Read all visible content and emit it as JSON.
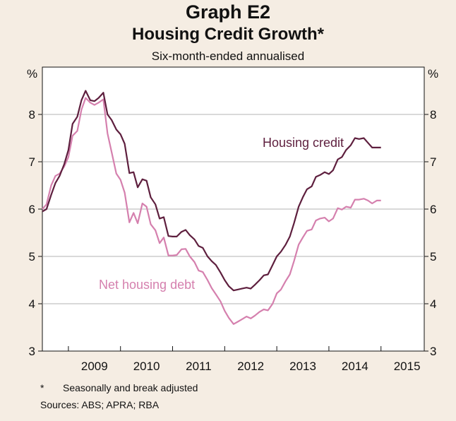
{
  "chart_data": {
    "type": "line",
    "title": "Graph E2",
    "subtitle": "Housing Credit Growth*",
    "caption": "Six-month-ended annualised",
    "ylabel_left": "%",
    "ylabel_right": "%",
    "ylim": [
      3,
      9
    ],
    "yticks": [
      3,
      4,
      5,
      6,
      7,
      8
    ],
    "xlim": [
      2008.5,
      2015.83
    ],
    "xtick_labels": [
      "2009",
      "2010",
      "2011",
      "2012",
      "2013",
      "2014",
      "2015"
    ],
    "grid": true,
    "series": [
      {
        "name": "Housing credit",
        "color": "#5e1f3e",
        "x": [
          2008.5,
          2008.58,
          2008.67,
          2008.75,
          2008.83,
          2008.92,
          2009.0,
          2009.08,
          2009.17,
          2009.25,
          2009.33,
          2009.42,
          2009.5,
          2009.58,
          2009.67,
          2009.75,
          2009.83,
          2009.92,
          2010.0,
          2010.08,
          2010.17,
          2010.25,
          2010.33,
          2010.42,
          2010.5,
          2010.58,
          2010.67,
          2010.75,
          2010.83,
          2010.92,
          2011.0,
          2011.08,
          2011.17,
          2011.25,
          2011.33,
          2011.42,
          2011.5,
          2011.58,
          2011.67,
          2011.75,
          2011.83,
          2011.92,
          2012.0,
          2012.08,
          2012.17,
          2012.25,
          2012.33,
          2012.42,
          2012.5,
          2012.58,
          2012.67,
          2012.75,
          2012.83,
          2012.92,
          2013.0,
          2013.08,
          2013.17,
          2013.25,
          2013.33,
          2013.42,
          2013.5,
          2013.58,
          2013.67,
          2013.75,
          2013.83,
          2013.92,
          2014.0,
          2014.08,
          2014.17,
          2014.25,
          2014.33,
          2014.42,
          2014.5,
          2014.58,
          2014.67,
          2014.75,
          2014.83,
          2014.92,
          2015.0
        ],
        "values": [
          5.95,
          6.0,
          6.3,
          6.55,
          6.7,
          6.95,
          7.25,
          7.8,
          7.95,
          8.3,
          8.5,
          8.3,
          8.28,
          8.35,
          8.46,
          8.0,
          7.88,
          7.68,
          7.58,
          7.38,
          6.76,
          6.78,
          6.46,
          6.63,
          6.6,
          6.25,
          6.1,
          5.8,
          5.83,
          5.43,
          5.42,
          5.42,
          5.52,
          5.56,
          5.45,
          5.36,
          5.22,
          5.18,
          5.0,
          4.9,
          4.82,
          4.66,
          4.5,
          4.37,
          4.28,
          4.3,
          4.32,
          4.34,
          4.32,
          4.4,
          4.5,
          4.6,
          4.62,
          4.82,
          5.0,
          5.1,
          5.25,
          5.42,
          5.7,
          6.05,
          6.25,
          6.42,
          6.48,
          6.68,
          6.72,
          6.78,
          6.74,
          6.82,
          7.05,
          7.1,
          7.25,
          7.35,
          7.5,
          7.48,
          7.5,
          7.4,
          7.3,
          7.3,
          7.3
        ]
      },
      {
        "name": "Net housing debt",
        "color": "#d580ae",
        "x": [
          2008.5,
          2008.58,
          2008.67,
          2008.75,
          2008.83,
          2008.92,
          2009.0,
          2009.08,
          2009.17,
          2009.25,
          2009.33,
          2009.42,
          2009.5,
          2009.58,
          2009.67,
          2009.75,
          2009.83,
          2009.92,
          2010.0,
          2010.08,
          2010.17,
          2010.25,
          2010.33,
          2010.42,
          2010.5,
          2010.58,
          2010.67,
          2010.75,
          2010.83,
          2010.92,
          2011.0,
          2011.08,
          2011.17,
          2011.25,
          2011.33,
          2011.42,
          2011.5,
          2011.58,
          2011.67,
          2011.75,
          2011.83,
          2011.92,
          2012.0,
          2012.08,
          2012.17,
          2012.25,
          2012.33,
          2012.42,
          2012.5,
          2012.58,
          2012.67,
          2012.75,
          2012.83,
          2012.92,
          2013.0,
          2013.08,
          2013.17,
          2013.25,
          2013.33,
          2013.42,
          2013.5,
          2013.58,
          2013.67,
          2013.75,
          2013.83,
          2013.92,
          2014.0,
          2014.08,
          2014.17,
          2014.25,
          2014.33,
          2014.42,
          2014.5,
          2014.58,
          2014.67,
          2014.75,
          2014.83,
          2014.92,
          2015.0
        ],
        "values": [
          6.0,
          6.1,
          6.5,
          6.7,
          6.75,
          6.9,
          7.1,
          7.55,
          7.65,
          8.1,
          8.35,
          8.25,
          8.2,
          8.25,
          8.32,
          7.6,
          7.2,
          6.75,
          6.62,
          6.35,
          5.72,
          5.92,
          5.7,
          6.12,
          6.05,
          5.68,
          5.55,
          5.28,
          5.4,
          5.02,
          5.02,
          5.03,
          5.15,
          5.16,
          5.0,
          4.88,
          4.7,
          4.67,
          4.5,
          4.33,
          4.2,
          4.05,
          3.85,
          3.7,
          3.57,
          3.62,
          3.67,
          3.73,
          3.69,
          3.75,
          3.83,
          3.88,
          3.86,
          4.0,
          4.22,
          4.3,
          4.48,
          4.62,
          4.9,
          5.25,
          5.4,
          5.54,
          5.57,
          5.76,
          5.8,
          5.82,
          5.74,
          5.8,
          6.02,
          5.99,
          6.05,
          6.03,
          6.2,
          6.2,
          6.22,
          6.18,
          6.12,
          6.18,
          6.18
        ]
      }
    ]
  },
  "footnote_marker": "*",
  "footnote_text": "Seasonally and break adjusted",
  "sources": "Sources:   ABS; APRA; RBA"
}
